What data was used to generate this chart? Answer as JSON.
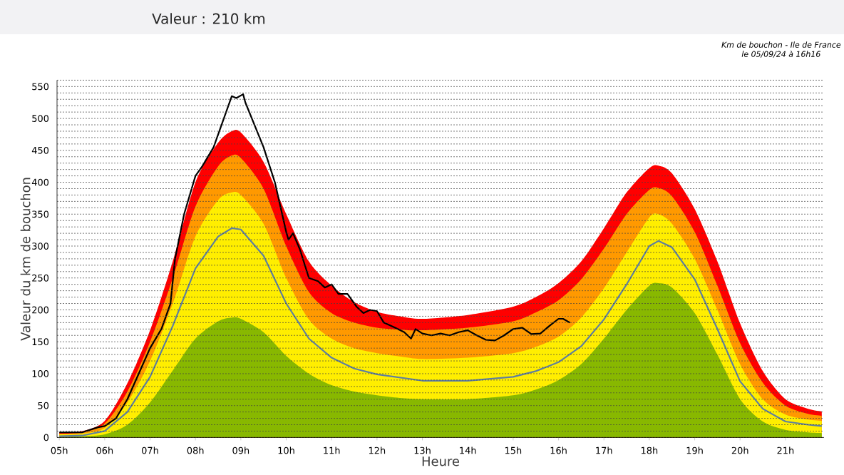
{
  "chart_data": {
    "type": "area",
    "title": "Km de bouchon - Ile de France",
    "subtitle": "le 05/09/24 à 16h16",
    "xlabel": "Heure",
    "ylabel": "Valeur du  km de bouchon",
    "annotations": [
      "Valeur : 210 km"
    ],
    "x": [
      5,
      5.5,
      6,
      6.5,
      7,
      7.5,
      8,
      8.5,
      8.8,
      9,
      9.5,
      10,
      10.5,
      11,
      11.5,
      12,
      12.5,
      13,
      14,
      15,
      15.5,
      16,
      16.5,
      17,
      17.5,
      18,
      18.2,
      18.5,
      19,
      19.5,
      20,
      20.5,
      21,
      21.5,
      21.8
    ],
    "series": [
      {
        "color": "#ff0000",
        "values": [
          8,
          10,
          26,
          85,
          168,
          276,
          400,
          462,
          480,
          478,
          432,
          350,
          276,
          238,
          212,
          197,
          190,
          186,
          192,
          205,
          220,
          242,
          276,
          328,
          384,
          422,
          426,
          414,
          358,
          276,
          179,
          104,
          60,
          45,
          41
        ]
      },
      {
        "color": "#ff9900",
        "values": [
          6,
          8,
          22,
          72,
          150,
          250,
          362,
          425,
          442,
          438,
          390,
          300,
          228,
          195,
          180,
          172,
          169,
          168,
          172,
          182,
          196,
          215,
          248,
          296,
          350,
          388,
          391,
          378,
          322,
          238,
          148,
          86,
          50,
          37,
          34
        ]
      },
      {
        "color": "#ffee00",
        "values": [
          5,
          6,
          15,
          55,
          120,
          210,
          315,
          372,
          384,
          380,
          335,
          250,
          185,
          155,
          140,
          132,
          127,
          123,
          125,
          132,
          142,
          158,
          188,
          234,
          290,
          345,
          350,
          335,
          280,
          200,
          115,
          60,
          36,
          28,
          26
        ]
      },
      {
        "color": "#88b800",
        "values": [
          1,
          2,
          5,
          20,
          55,
          105,
          155,
          182,
          188,
          186,
          165,
          128,
          100,
          82,
          72,
          66,
          62,
          60,
          60,
          66,
          75,
          90,
          115,
          155,
          200,
          238,
          242,
          235,
          195,
          130,
          60,
          25,
          12,
          8,
          7
        ]
      },
      {
        "type": "line",
        "color": "#5f7f9f",
        "values": [
          2,
          3,
          10,
          40,
          95,
          175,
          265,
          315,
          328,
          326,
          285,
          210,
          155,
          125,
          108,
          99,
          94,
          89,
          89,
          95,
          104,
          118,
          143,
          185,
          240,
          300,
          308,
          298,
          248,
          170,
          88,
          45,
          25,
          20,
          18
        ]
      },
      {
        "type": "line",
        "color": "#000000",
        "x": [
          5,
          5.5,
          5.85,
          6,
          6.25,
          6.5,
          6.75,
          7,
          7.25,
          7.45,
          7.55,
          7.75,
          8,
          8.15,
          8.4,
          8.6,
          8.8,
          8.9,
          9.05,
          9.1,
          9.3,
          9.5,
          9.75,
          10,
          10.05,
          10.15,
          10.3,
          10.5,
          10.7,
          10.85,
          11,
          11.15,
          11.35,
          11.55,
          11.7,
          11.85,
          12,
          12.15,
          12.4,
          12.6,
          12.75,
          12.85,
          13,
          13.2,
          13.4,
          13.6,
          13.8,
          14,
          14.2,
          14.4,
          14.6,
          14.8,
          15,
          15.2,
          15.4,
          15.6,
          15.8,
          16,
          16.1,
          16.25
        ],
        "values": [
          8,
          8,
          16,
          18,
          30,
          60,
          100,
          140,
          170,
          210,
          280,
          350,
          410,
          425,
          455,
          495,
          535,
          532,
          538,
          525,
          490,
          455,
          400,
          322,
          310,
          320,
          295,
          250,
          245,
          235,
          240,
          225,
          225,
          205,
          195,
          200,
          198,
          180,
          172,
          165,
          155,
          170,
          163,
          160,
          163,
          160,
          165,
          168,
          160,
          153,
          152,
          160,
          170,
          172,
          162,
          163,
          175,
          186,
          186,
          180
        ]
      }
    ],
    "xlim": [
      4.95,
      21.85
    ],
    "ylim": [
      0,
      560
    ],
    "xticks": [
      {
        "value": 5,
        "label": "05h"
      },
      {
        "value": 6,
        "label": "06h"
      },
      {
        "value": 7,
        "label": "07h"
      },
      {
        "value": 8,
        "label": "08h"
      },
      {
        "value": 9,
        "label": "09h"
      },
      {
        "value": 10,
        "label": "10h"
      },
      {
        "value": 11,
        "label": "11h"
      },
      {
        "value": 12,
        "label": "12h"
      },
      {
        "value": 13,
        "label": "13h"
      },
      {
        "value": 14,
        "label": "14h"
      },
      {
        "value": 15,
        "label": "15h"
      },
      {
        "value": 16,
        "label": "16h"
      },
      {
        "value": 17,
        "label": "17h"
      },
      {
        "value": 18,
        "label": "18h"
      },
      {
        "value": 19,
        "label": "19h"
      },
      {
        "value": 20,
        "label": "20h"
      },
      {
        "value": 21,
        "label": "21h"
      }
    ],
    "yticks": [
      0,
      {
        "value": 10,
        "label": null
      },
      {
        "value": 20,
        "label": null
      },
      {
        "value": 30,
        "label": null
      },
      {
        "value": 40,
        "label": null
      },
      50,
      {
        "value": 60,
        "label": null
      },
      {
        "value": 70,
        "label": null
      },
      {
        "value": 80,
        "label": null
      },
      {
        "value": 90,
        "label": null
      },
      100,
      {
        "value": 110,
        "label": null
      },
      {
        "value": 120,
        "label": null
      },
      {
        "value": 130,
        "label": null
      },
      {
        "value": 140,
        "label": null
      },
      150,
      {
        "value": 160,
        "label": null
      },
      {
        "value": 170,
        "label": null
      },
      {
        "value": 180,
        "label": null
      },
      {
        "value": 190,
        "label": null
      },
      200,
      {
        "value": 210,
        "label": null
      },
      {
        "value": 220,
        "label": null
      },
      {
        "value": 230,
        "label": null
      },
      {
        "value": 240,
        "label": null
      },
      250,
      {
        "value": 260,
        "label": null
      },
      {
        "value": 270,
        "label": null
      },
      {
        "value": 280,
        "label": null
      },
      {
        "value": 290,
        "label": null
      },
      300,
      {
        "value": 310,
        "label": null
      },
      {
        "value": 320,
        "label": null
      },
      {
        "value": 330,
        "label": null
      },
      {
        "value": 340,
        "label": null
      },
      350,
      {
        "value": 360,
        "label": null
      },
      {
        "value": 370,
        "label": null
      },
      {
        "value": 380,
        "label": null
      },
      {
        "value": 390,
        "label": null
      },
      400,
      {
        "value": 410,
        "label": null
      },
      {
        "value": 420,
        "label": null
      },
      {
        "value": 430,
        "label": null
      },
      {
        "value": 440,
        "label": null
      },
      450,
      {
        "value": 460,
        "label": null
      },
      {
        "value": 470,
        "label": null
      },
      {
        "value": 480,
        "label": null
      },
      {
        "value": 490,
        "label": null
      },
      500,
      {
        "value": 510,
        "label": null
      },
      {
        "value": 520,
        "label": null
      },
      {
        "value": 530,
        "label": null
      },
      {
        "value": 540,
        "label": null
      },
      550,
      {
        "value": 560,
        "label": null
      }
    ],
    "grid": "y"
  }
}
